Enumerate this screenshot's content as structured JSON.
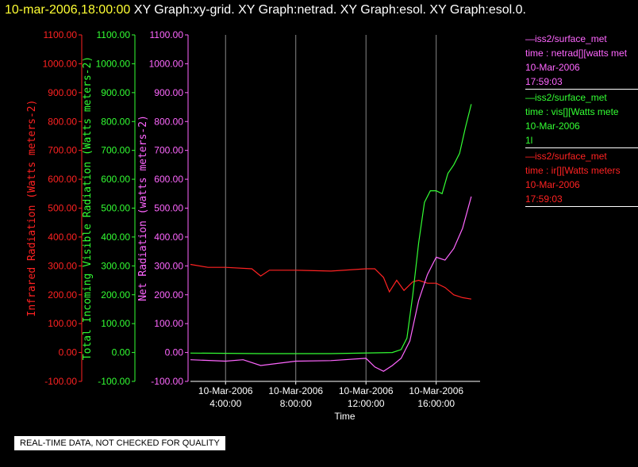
{
  "header": {
    "time_label": "10-mar-2006,18:00:00",
    "graphs_label": " XY Graph:xy-grid.  XY Graph:netrad.  XY Graph:esol.  XY Graph:esol.0."
  },
  "legend": [
    {
      "color": "#ff66ff",
      "lines": [
        "—iss2/surface_met",
        "time : netrad[][watts met",
        "10-Mar-2006",
        "17:59:03"
      ]
    },
    {
      "color": "#33ff33",
      "lines": [
        "—iss2/surface_met",
        "time : vis[][Watts mete",
        "10-Mar-2006",
        "1l"
      ]
    },
    {
      "color": "#ff2222",
      "lines": [
        "—iss2/surface_met",
        "time : ir[][Watts meters",
        "10-Mar-2006",
        "17:59:03"
      ]
    }
  ],
  "quality_notice": "REAL-TIME DATA, NOT CHECKED FOR QUALITY",
  "chart_data": {
    "type": "line",
    "xlabel": "Time",
    "xlim": [
      "10-Mar-2006 2:00:00",
      "10-Mar-2006 18:30:00"
    ],
    "x_ticks": [
      {
        "date": "10-Mar-2006",
        "time": "4:00:00"
      },
      {
        "date": "10-Mar-2006",
        "time": "8:00:00"
      },
      {
        "date": "10-Mar-2006",
        "time": "12:00:00"
      },
      {
        "date": "10-Mar-2006",
        "time": "16:00:00"
      }
    ],
    "y_axes": [
      {
        "label": "Infrared Radiation (Watts meters-2)",
        "color": "#ff2222",
        "ylim": [
          -100,
          1100
        ],
        "ticks": [
          "1100.00",
          "1000.00",
          "900.00",
          "800.00",
          "700.00",
          "600.00",
          "500.00",
          "400.00",
          "300.00",
          "200.00",
          "100.00",
          "0.00",
          "-100.00"
        ]
      },
      {
        "label": "Total Incoming Visible Radiation (Watts meters-2)",
        "color": "#33ff33",
        "ylim": [
          -100,
          1100
        ],
        "ticks": [
          "1100.00",
          "1000.00",
          "900.00",
          "800.00",
          "700.00",
          "600.00",
          "500.00",
          "400.00",
          "300.00",
          "200.00",
          "100.00",
          "0.00",
          "-100.00"
        ]
      },
      {
        "label": "Net Radiation (watts meters-2)",
        "color": "#ff66ff",
        "ylim": [
          -100,
          1100
        ],
        "ticks": [
          "1100.00",
          "1000.00",
          "900.00",
          "800.00",
          "700.00",
          "600.00",
          "500.00",
          "400.00",
          "300.00",
          "200.00",
          "100.00",
          "0.00",
          "-100.00"
        ]
      }
    ],
    "grid_x": true,
    "series": [
      {
        "axis": 0,
        "color": "#ff2222",
        "x": [
          "10-Mar-2006 2:00:00",
          "10-Mar-2006 3:00:00",
          "10-Mar-2006 4:00:00",
          "10-Mar-2006 5:30:00",
          "10-Mar-2006 6:00:00",
          "10-Mar-2006 6:30:00",
          "10-Mar-2006 8:00:00",
          "10-Mar-2006 10:00:00",
          "10-Mar-2006 12:00:00",
          "10-Mar-2006 12:30:00",
          "10-Mar-2006 13:00:00",
          "10-Mar-2006 13:20:00",
          "10-Mar-2006 13:45:00",
          "10-Mar-2006 14:10:00",
          "10-Mar-2006 14:40:00",
          "10-Mar-2006 15:00:00",
          "10-Mar-2006 15:30:00",
          "10-Mar-2006 16:00:00",
          "10-Mar-2006 16:30:00",
          "10-Mar-2006 17:00:00",
          "10-Mar-2006 17:30:00",
          "10-Mar-2006 18:00:00"
        ],
        "values": [
          305,
          295,
          295,
          290,
          265,
          285,
          285,
          282,
          290,
          290,
          260,
          210,
          250,
          215,
          245,
          250,
          240,
          240,
          225,
          200,
          190,
          185
        ]
      },
      {
        "axis": 1,
        "color": "#33ff33",
        "x": [
          "10-Mar-2006 2:00:00",
          "10-Mar-2006 6:00:00",
          "10-Mar-2006 10:00:00",
          "10-Mar-2006 13:30:00",
          "10-Mar-2006 14:00:00",
          "10-Mar-2006 14:20:00",
          "10-Mar-2006 14:40:00",
          "10-Mar-2006 15:00:00",
          "10-Mar-2006 15:20:00",
          "10-Mar-2006 15:40:00",
          "10-Mar-2006 16:00:00",
          "10-Mar-2006 16:20:00",
          "10-Mar-2006 16:40:00",
          "10-Mar-2006 17:00:00",
          "10-Mar-2006 17:20:00",
          "10-Mar-2006 17:40:00",
          "10-Mar-2006 18:00:00"
        ],
        "values": [
          -2,
          -4,
          -4,
          0,
          10,
          50,
          200,
          380,
          520,
          560,
          560,
          550,
          620,
          650,
          690,
          780,
          860
        ]
      },
      {
        "axis": 2,
        "color": "#ff66ff",
        "x": [
          "10-Mar-2006 2:00:00",
          "10-Mar-2006 4:00:00",
          "10-Mar-2006 5:00:00",
          "10-Mar-2006 6:00:00",
          "10-Mar-2006 8:00:00",
          "10-Mar-2006 10:00:00",
          "10-Mar-2006 12:00:00",
          "10-Mar-2006 12:30:00",
          "10-Mar-2006 13:00:00",
          "10-Mar-2006 13:30:00",
          "10-Mar-2006 14:00:00",
          "10-Mar-2006 14:30:00",
          "10-Mar-2006 15:00:00",
          "10-Mar-2006 15:30:00",
          "10-Mar-2006 16:00:00",
          "10-Mar-2006 16:30:00",
          "10-Mar-2006 17:00:00",
          "10-Mar-2006 17:30:00",
          "10-Mar-2006 18:00:00"
        ],
        "values": [
          -25,
          -30,
          -25,
          -45,
          -30,
          -28,
          -20,
          -50,
          -65,
          -45,
          -20,
          40,
          180,
          270,
          330,
          320,
          360,
          430,
          540
        ]
      }
    ]
  }
}
